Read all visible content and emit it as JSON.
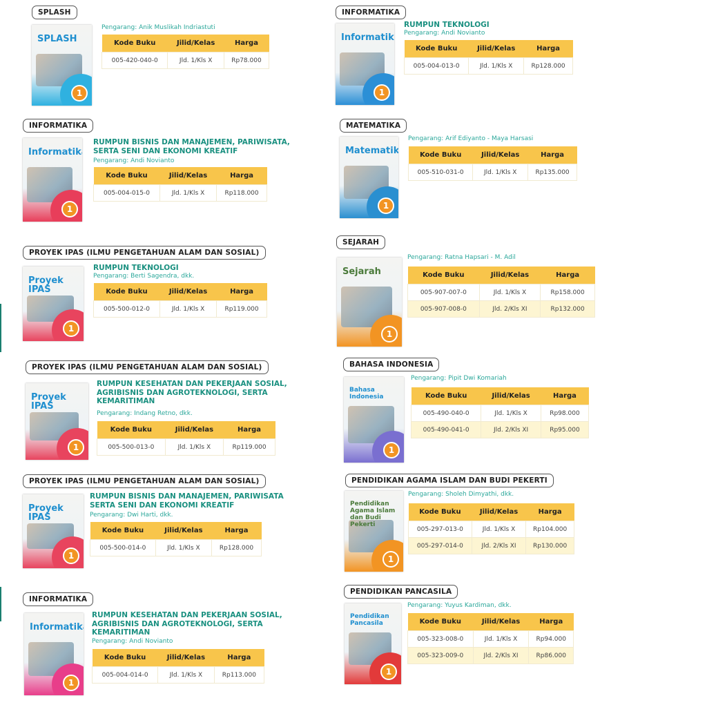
{
  "columns": [
    "Kode Buku",
    "Jilid/Kelas",
    "Harga"
  ],
  "colors": {
    "header": "#f8c54b",
    "alt_row": "#fdf5d2",
    "accent_teal": "#1a9080"
  },
  "books": [
    {
      "subject": "SPLASH",
      "cover_title": "SPLASH",
      "cover_color": "#2fb1e0",
      "rumpun": "",
      "author": "Pengarang: Anik Muslikah Indriastuti",
      "rows": [
        [
          "005-420-040-0",
          "Jld. 1/Kls X",
          "Rp78.000"
        ]
      ]
    },
    {
      "subject": "INFORMATIKA",
      "cover_title": "Informatika",
      "cover_color": "#e83e5a",
      "rumpun": "RUMPUN BISNIS DAN MANAJEMEN, PARIWISATA,\nSERTA SENI DAN EKONOMI KREATIF",
      "author": "Pengarang: Andi Novianto",
      "rows": [
        [
          "005-004-015-0",
          "Jld. 1/Kls X",
          "Rp118.000"
        ]
      ]
    },
    {
      "subject": "PROYEK IPAS (ILMU PENGETAHUAN ALAM DAN SOSIAL)",
      "cover_title": "Proyek IPAS",
      "cover_color": "#e8445e",
      "rumpun": "RUMPUN TEKNOLOGI",
      "author": "Pengarang: Berti Sagendra, dkk.",
      "rows": [
        [
          "005-500-012-0",
          "Jld. 1/Kls X",
          "Rp119.000"
        ]
      ]
    },
    {
      "subject": "PROYEK IPAS (ILMU PENGETAHUAN ALAM DAN SOSIAL)",
      "cover_title": "Proyek IPAS",
      "cover_color": "#e8445e",
      "rumpun": "RUMPUN KESEHATAN DAN PEKERJAAN SOSIAL,\nAGRIBISNIS DAN AGROTEKNOLOGI, SERTA\nKEMARITIMAN",
      "author": "Pengarang: Indang Retno, dkk.",
      "rows": [
        [
          "005-500-013-0",
          "Jld. 1/Kls X",
          "Rp119.000"
        ]
      ]
    },
    {
      "subject": "PROYEK IPAS (ILMU PENGETAHUAN ALAM DAN SOSIAL)",
      "cover_title": "Proyek IPAS",
      "cover_color": "#e8445e",
      "rumpun": "RUMPUN BISNIS DAN MANAJEMEN, PARIWISATA\nSERTA SENI DAN EKONOMI KREATIF",
      "author": "Pengarang: Dwi Harti, dkk.",
      "rows": [
        [
          "005-500-014-0",
          "Jld. 1/Kls X",
          "Rp128.000"
        ]
      ]
    },
    {
      "subject": "INFORMATIKA",
      "cover_title": "Informatika",
      "cover_color": "#e83e8a",
      "rumpun": "RUMPUN KESEHATAN DAN PEKERJAAN SOSIAL,\nAGRIBISNIS DAN AGROTEKNOLOGI, SERTA\nKEMARITIMAN",
      "author": "Pengarang: Andi Novianto",
      "rows": [
        [
          "005-004-014-0",
          "Jld. 1/Kls X",
          "Rp113.000"
        ]
      ]
    },
    {
      "subject": "INFORMATIKA",
      "cover_title": "Informatika",
      "cover_color": "#2b8fd6",
      "rumpun": "RUMPUN TEKNOLOGI",
      "author": "Pengarang: Andi Novianto",
      "rows": [
        [
          "005-004-013-0",
          "Jld. 1/Kls X",
          "Rp128.000"
        ]
      ]
    },
    {
      "subject": "MATEMATIKA",
      "cover_title": "Matematika",
      "cover_color": "#2a8fd0",
      "rumpun": "",
      "author": "Pengarang: Arif Ediyanto - Maya Harsasi",
      "rows": [
        [
          "005-510-031-0",
          "Jld. 1/Kls X",
          "Rp135.000"
        ]
      ]
    },
    {
      "subject": "SEJARAH",
      "cover_title": "Sejarah",
      "cover_color": "#f29423",
      "rumpun": "",
      "author": "Pengarang: Ratna Hapsari - M. Adil",
      "rows": [
        [
          "005-907-007-0",
          "Jld. 1/Kls X",
          "Rp158.000"
        ],
        [
          "005-907-008-0",
          "Jld. 2/Kls XI",
          "Rp132.000"
        ]
      ]
    },
    {
      "subject": "BAHASA INDONESIA",
      "cover_title": "Bahasa Indonesia",
      "cover_color": "#7a6fd0",
      "rumpun": "",
      "author": "Pengarang: Pipit Dwi Komariah",
      "rows": [
        [
          "005-490-040-0",
          "Jld. 1/Kls X",
          "Rp98.000"
        ],
        [
          "005-490-041-0",
          "Jld. 2/Kls XI",
          "Rp95.000"
        ]
      ]
    },
    {
      "subject": "PENDIDIKAN AGAMA ISLAM DAN BUDI PEKERTI",
      "cover_title": "Pendidikan Agama Islam dan Budi Pekerti",
      "cover_color": "#f29423",
      "rumpun": "",
      "author": "Pengarang: Sholeh Dimyathi, dkk.",
      "rows": [
        [
          "005-297-013-0",
          "Jld. 1/Kls X",
          "Rp104.000"
        ],
        [
          "005-297-014-0",
          "Jld. 2/Kls XI",
          "Rp130.000"
        ]
      ]
    },
    {
      "subject": "PENDIDIKAN PANCASILA",
      "cover_title": "Pendidikan Pancasila",
      "cover_color": "#e23a3a",
      "rumpun": "",
      "author": "Pengarang: Yuyus Kardiman, dkk.",
      "rows": [
        [
          "005-323-008-0",
          "Jld. 1/Kls X",
          "Rp94.000"
        ],
        [
          "005-323-009-0",
          "Jld. 2/Kls XI",
          "Rp86.000"
        ]
      ]
    }
  ]
}
